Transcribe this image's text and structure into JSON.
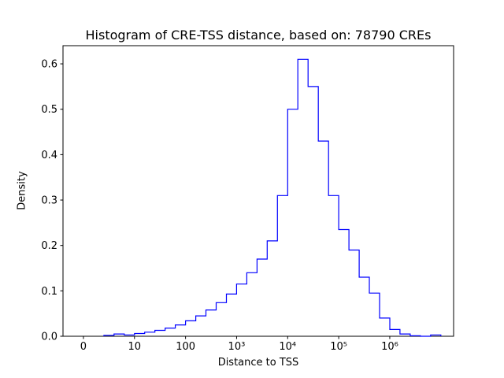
{
  "figure": {
    "title": "Histogram of CRE-TSS distance, based on: 78790 CREs",
    "xlabel": "Distance to TSS",
    "ylabel": "Density"
  },
  "chart_data": {
    "type": "bar",
    "subtype": "step-histogram-outline",
    "title": "Histogram of CRE-TSS distance, based on: 78790 CREs",
    "xlabel": "Distance to TSS",
    "ylabel": "Density",
    "n_cres": 78790,
    "line_color": "#0000ff",
    "background_color": "#ffffff",
    "x_scale": "symlog (positions in log10 decades, '0' tick at u=0)",
    "grid": "off",
    "legend": "none",
    "xlim_u": [
      -0.4,
      7.25
    ],
    "ylim": [
      0,
      0.64
    ],
    "x_ticks": [
      {
        "label": "0",
        "u": 0
      },
      {
        "label": "10",
        "u": 1
      },
      {
        "label": "100",
        "u": 2
      },
      {
        "label": "10³",
        "u": 3
      },
      {
        "label": "10⁴",
        "u": 4
      },
      {
        "label": "10⁵",
        "u": 5
      },
      {
        "label": "10⁶",
        "u": 6
      }
    ],
    "y_ticks": [
      "0.0",
      "0.1",
      "0.2",
      "0.3",
      "0.4",
      "0.5",
      "0.6"
    ],
    "bin_edges_log10": [
      0.4,
      0.6,
      0.8,
      1.0,
      1.2,
      1.4,
      1.6,
      1.8,
      2.0,
      2.2,
      2.4,
      2.6,
      2.8,
      3.0,
      3.2,
      3.4,
      3.6,
      3.8,
      4.0,
      4.2,
      4.4,
      4.6,
      4.8,
      5.0,
      5.2,
      5.4,
      5.6,
      5.8,
      6.0,
      6.2,
      6.4,
      6.6,
      6.8,
      7.0
    ],
    "densities": [
      0.002,
      0.005,
      0.003,
      0.006,
      0.009,
      0.013,
      0.018,
      0.025,
      0.034,
      0.045,
      0.058,
      0.074,
      0.093,
      0.115,
      0.14,
      0.17,
      0.21,
      0.31,
      0.5,
      0.61,
      0.55,
      0.43,
      0.31,
      0.235,
      0.19,
      0.13,
      0.095,
      0.04,
      0.015,
      0.005,
      0.001,
      0.0,
      0.003
    ],
    "peak": {
      "x_approx": "2.5e4",
      "density": 0.61
    }
  }
}
